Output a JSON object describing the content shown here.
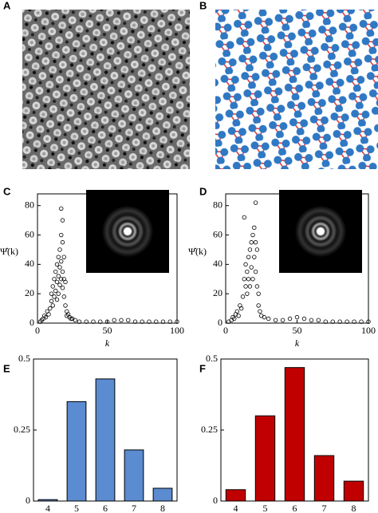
{
  "images": [
    {
      "label": "A"
    },
    {
      "label": "B"
    }
  ],
  "chart_data": [
    {
      "type": "scatter",
      "label": "C",
      "xlabel": "k",
      "ylabel": "Ψ̂(k)",
      "xlim": [
        0,
        100
      ],
      "ylim": [
        0,
        88
      ],
      "xticks": [
        0,
        50,
        100
      ],
      "yticks": [
        0,
        20,
        40,
        60,
        80
      ],
      "color": "#000000",
      "x": [
        2,
        3,
        4,
        5,
        6,
        7,
        8,
        9,
        10,
        10,
        11,
        11,
        12,
        12,
        13,
        13,
        14,
        14,
        14,
        15,
        15,
        15,
        16,
        16,
        16,
        17,
        17,
        17,
        17,
        18,
        18,
        18,
        18,
        19,
        19,
        19,
        20,
        20,
        21,
        21,
        22,
        23,
        24,
        25,
        27,
        30,
        35,
        40,
        45,
        50,
        55,
        60,
        65,
        70,
        75,
        80,
        85,
        90,
        95,
        100
      ],
      "y": [
        1,
        2,
        3,
        5,
        4,
        8,
        6,
        10,
        15,
        20,
        12,
        25,
        18,
        30,
        22,
        35,
        28,
        40,
        16,
        45,
        32,
        20,
        50,
        38,
        26,
        78,
        60,
        42,
        30,
        70,
        55,
        35,
        24,
        45,
        30,
        18,
        28,
        12,
        8,
        5,
        6,
        4,
        3,
        3,
        2,
        1,
        1,
        1,
        1,
        1,
        2,
        2,
        2,
        1,
        1,
        1,
        1,
        1,
        1,
        1
      ]
    },
    {
      "type": "scatter",
      "label": "D",
      "xlabel": "k",
      "ylabel": "Ψ̂(k)",
      "xlim": [
        0,
        100
      ],
      "ylim": [
        0,
        88
      ],
      "xticks": [
        0,
        50,
        100
      ],
      "yticks": [
        0,
        20,
        40,
        60,
        80
      ],
      "color": "#000000",
      "x": [
        2,
        4,
        5,
        6,
        7,
        8,
        9,
        10,
        11,
        12,
        13,
        13,
        14,
        14,
        15,
        15,
        16,
        16,
        17,
        17,
        18,
        18,
        19,
        19,
        20,
        20,
        21,
        21,
        21,
        22,
        22,
        23,
        23,
        24,
        25,
        27,
        30,
        35,
        40,
        45,
        50,
        55,
        60,
        65,
        70,
        75,
        80,
        85,
        90,
        95,
        100
      ],
      "y": [
        1,
        2,
        4,
        3,
        6,
        8,
        5,
        12,
        10,
        18,
        72,
        30,
        25,
        40,
        35,
        20,
        45,
        30,
        50,
        25,
        55,
        38,
        60,
        30,
        65,
        45,
        82,
        55,
        35,
        50,
        25,
        20,
        12,
        8,
        5,
        4,
        3,
        2,
        2,
        3,
        4,
        3,
        2,
        2,
        1,
        1,
        1,
        1,
        1,
        1,
        1
      ]
    },
    {
      "type": "bar",
      "label": "E",
      "categories": [
        "4",
        "5",
        "6",
        "7",
        "8"
      ],
      "values": [
        0.005,
        0.35,
        0.43,
        0.18,
        0.045
      ],
      "color": "#5b8bd0",
      "ylim": [
        0,
        0.5
      ],
      "yticks": [
        0,
        0.25,
        0.5
      ]
    },
    {
      "type": "bar",
      "label": "F",
      "categories": [
        "4",
        "5",
        "6",
        "7",
        "8"
      ],
      "values": [
        0.04,
        0.3,
        0.47,
        0.16,
        0.07
      ],
      "color": "#c00000",
      "ylim": [
        0,
        0.5
      ],
      "yticks": [
        0,
        0.25,
        0.5
      ]
    }
  ]
}
